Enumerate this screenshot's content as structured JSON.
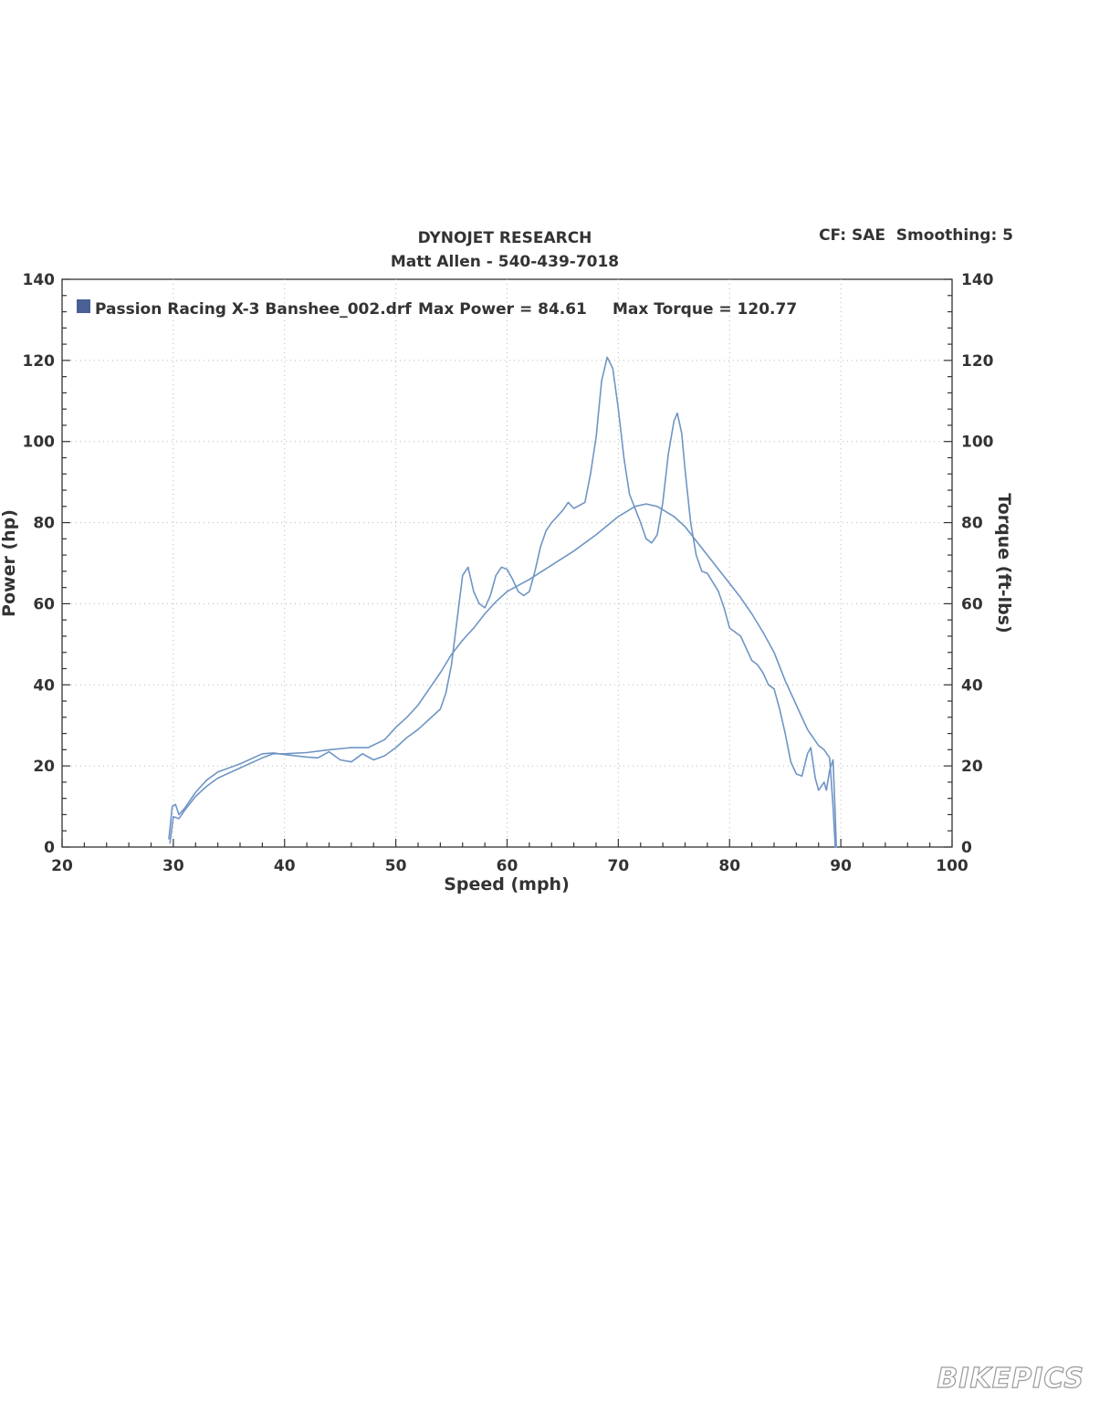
{
  "header": {
    "title": "DYNOJET RESEARCH",
    "subtitle": "Matt Allen - 540-439-7018",
    "settings": "CF: SAE  Smoothing: 5"
  },
  "legend": {
    "run_name": "Passion Racing X-3 Banshee_002.drf",
    "max_power_text": "Max Power = 84.61",
    "max_torque_text": "Max Torque = 120.77",
    "swatch_color": "#4a5f95"
  },
  "watermark": "BIKEPICS",
  "colors": {
    "line": "#6f95c4",
    "grid": "#b8b8b8",
    "axis": "#333333"
  },
  "chart_data": {
    "type": "line",
    "xlabel": "Speed (mph)",
    "ylabel": "Power (hp)",
    "y2label": "Torque (ft-lbs)",
    "xlim": [
      20,
      100
    ],
    "ylim": [
      0,
      140
    ],
    "y2lim": [
      0,
      140
    ],
    "x_ticks": [
      "20",
      "30",
      "40",
      "50",
      "60",
      "70",
      "80",
      "90",
      "100"
    ],
    "y_ticks": [
      "0",
      "20",
      "40",
      "60",
      "80",
      "100",
      "120",
      "140"
    ],
    "y2_ticks": [
      "0",
      "20",
      "40",
      "60",
      "80",
      "100",
      "120",
      "140"
    ],
    "grid": true,
    "legend_position": "top-left",
    "series": [
      {
        "name": "Power",
        "axis": "left",
        "points": [
          [
            29.7,
            1
          ],
          [
            30,
            7.5
          ],
          [
            30.5,
            7
          ],
          [
            31,
            9
          ],
          [
            32,
            12.5
          ],
          [
            33,
            15
          ],
          [
            34,
            17
          ],
          [
            36,
            19.5
          ],
          [
            38,
            22
          ],
          [
            39,
            23
          ],
          [
            40,
            23
          ],
          [
            42,
            23.3
          ],
          [
            44,
            24
          ],
          [
            46,
            24.5
          ],
          [
            47.5,
            24.5
          ],
          [
            49,
            26.5
          ],
          [
            50,
            29.5
          ],
          [
            51,
            32
          ],
          [
            52,
            35
          ],
          [
            53,
            39
          ],
          [
            54,
            43
          ],
          [
            55,
            47.5
          ],
          [
            56,
            51
          ],
          [
            57,
            54
          ],
          [
            58,
            57.5
          ],
          [
            59,
            60.5
          ],
          [
            60,
            63
          ],
          [
            62,
            66
          ],
          [
            64,
            69.5
          ],
          [
            66,
            73
          ],
          [
            68,
            77
          ],
          [
            70,
            81.5
          ],
          [
            71.5,
            84
          ],
          [
            72.5,
            84.6
          ],
          [
            73.5,
            84
          ],
          [
            75,
            81.5
          ],
          [
            76,
            79
          ],
          [
            77,
            75.5
          ],
          [
            78,
            72
          ],
          [
            79,
            68.5
          ],
          [
            80,
            65
          ],
          [
            81,
            61.5
          ],
          [
            82,
            57.5
          ],
          [
            83,
            53
          ],
          [
            84,
            48
          ],
          [
            85,
            41
          ],
          [
            86,
            35
          ],
          [
            87,
            29
          ],
          [
            88,
            25
          ],
          [
            88.5,
            24
          ],
          [
            89,
            22
          ],
          [
            89.3,
            10
          ],
          [
            89.5,
            0
          ]
        ]
      },
      {
        "name": "Torque",
        "axis": "right",
        "points": [
          [
            29.6,
            2
          ],
          [
            29.9,
            10
          ],
          [
            30.2,
            10.5
          ],
          [
            30.5,
            8
          ],
          [
            31,
            9.5
          ],
          [
            32,
            13.5
          ],
          [
            33,
            16.5
          ],
          [
            34,
            18.5
          ],
          [
            36,
            20.5
          ],
          [
            38,
            23
          ],
          [
            39,
            23.2
          ],
          [
            40,
            22.8
          ],
          [
            42,
            22.2
          ],
          [
            43,
            22
          ],
          [
            44,
            23.5
          ],
          [
            45,
            21.5
          ],
          [
            46,
            21
          ],
          [
            47,
            23
          ],
          [
            48,
            21.5
          ],
          [
            49,
            22.5
          ],
          [
            50,
            24.5
          ],
          [
            51,
            27
          ],
          [
            52,
            29
          ],
          [
            53,
            31.5
          ],
          [
            54,
            34
          ],
          [
            54.5,
            38
          ],
          [
            55,
            45
          ],
          [
            55.5,
            56
          ],
          [
            56,
            67
          ],
          [
            56.5,
            69
          ],
          [
            57,
            63
          ],
          [
            57.5,
            60
          ],
          [
            58,
            59
          ],
          [
            58.5,
            62
          ],
          [
            59,
            67
          ],
          [
            59.5,
            69
          ],
          [
            60,
            68.5
          ],
          [
            60.5,
            66
          ],
          [
            61,
            63
          ],
          [
            61.5,
            62
          ],
          [
            62,
            63
          ],
          [
            62.5,
            68
          ],
          [
            63,
            74
          ],
          [
            63.5,
            78
          ],
          [
            64,
            80
          ],
          [
            65,
            83
          ],
          [
            65.5,
            85
          ],
          [
            66,
            83.5
          ],
          [
            67,
            85
          ],
          [
            67.5,
            92
          ],
          [
            68,
            101
          ],
          [
            68.5,
            115
          ],
          [
            69,
            120.77
          ],
          [
            69.5,
            118
          ],
          [
            70,
            108
          ],
          [
            70.5,
            96
          ],
          [
            71,
            87
          ],
          [
            72,
            80
          ],
          [
            72.5,
            76
          ],
          [
            73,
            75
          ],
          [
            73.5,
            77
          ],
          [
            74,
            85
          ],
          [
            74.5,
            97
          ],
          [
            75,
            105
          ],
          [
            75.3,
            107
          ],
          [
            75.7,
            102
          ],
          [
            76,
            93
          ],
          [
            76.5,
            80
          ],
          [
            77,
            72
          ],
          [
            77.5,
            68
          ],
          [
            78,
            67.5
          ],
          [
            79,
            63
          ],
          [
            79.5,
            59
          ],
          [
            80,
            54
          ],
          [
            81,
            52
          ],
          [
            81.5,
            49
          ],
          [
            82,
            46
          ],
          [
            82.5,
            45
          ],
          [
            83,
            43
          ],
          [
            83.5,
            40
          ],
          [
            84,
            39
          ],
          [
            84.5,
            34
          ],
          [
            85,
            28
          ],
          [
            85.5,
            21
          ],
          [
            86,
            18
          ],
          [
            86.5,
            17.5
          ],
          [
            87,
            23
          ],
          [
            87.3,
            24.5
          ],
          [
            87.7,
            17
          ],
          [
            88,
            14
          ],
          [
            88.5,
            16
          ],
          [
            88.7,
            14
          ],
          [
            89,
            19
          ],
          [
            89.3,
            21.5
          ],
          [
            89.5,
            8
          ],
          [
            89.6,
            0
          ]
        ]
      }
    ]
  }
}
